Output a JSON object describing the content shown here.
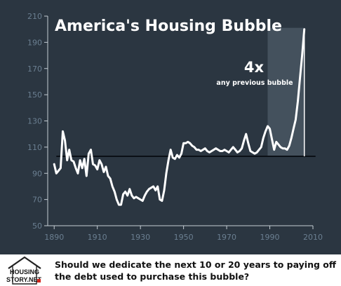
{
  "chart_data": {
    "type": "line",
    "title": "America's Housing Bubble",
    "xlabel": "",
    "ylabel": "",
    "xlim": [
      1887,
      2010
    ],
    "ylim": [
      50,
      210
    ],
    "x_ticks": [
      1890,
      1910,
      1930,
      1950,
      1970,
      1990,
      2010
    ],
    "y_ticks": [
      50,
      70,
      90,
      110,
      130,
      150,
      170,
      190,
      210
    ],
    "grid": false,
    "legend": "none",
    "colors": {
      "background": "#2b3641",
      "line": "#ffffff",
      "tick_label": "#6b7f91",
      "axis": "#c5cdd4",
      "baseline": "#0b1016",
      "highlight": "#5a6874"
    },
    "baseline_value": 103,
    "baseline_x_range": [
      1891,
      2006
    ],
    "highlight_range": [
      1989,
      2006
    ],
    "annotation": {
      "big": "4x",
      "small": "any previous bubble",
      "x": 2006,
      "y": 200
    },
    "series": [
      {
        "x": [
          1890,
          1891,
          1892,
          1893,
          1894,
          1895,
          1896,
          1897,
          1898,
          1899,
          1900,
          1901,
          1902,
          1903,
          1904,
          1905,
          1906,
          1907,
          1908,
          1909,
          1910,
          1911,
          1912,
          1913,
          1914,
          1915,
          1916,
          1917,
          1918,
          1919,
          1920,
          1921,
          1922,
          1923,
          1924,
          1925,
          1926,
          1927,
          1928,
          1929,
          1930,
          1931,
          1932,
          1933,
          1934,
          1935,
          1936,
          1937,
          1938,
          1939,
          1940,
          1941,
          1942,
          1943,
          1944,
          1945,
          1946,
          1947,
          1948,
          1949,
          1950,
          1951,
          1952,
          1953,
          1954,
          1955,
          1956,
          1957,
          1958,
          1959,
          1960,
          1961,
          1962,
          1963,
          1964,
          1965,
          1966,
          1967,
          1968,
          1969,
          1970,
          1971,
          1972,
          1973,
          1974,
          1975,
          1976,
          1977,
          1978,
          1979,
          1980,
          1981,
          1982,
          1983,
          1984,
          1985,
          1986,
          1987,
          1988,
          1989,
          1990,
          1991,
          1992,
          1993,
          1994,
          1995,
          1996,
          1997,
          1998,
          1999,
          2000,
          2001,
          2002,
          2003,
          2004,
          2005,
          2006
        ],
        "values": [
          97,
          90,
          92,
          94,
          122,
          115,
          100,
          108,
          100,
          99,
          94,
          90,
          100,
          94,
          101,
          88,
          105,
          108,
          97,
          96,
          93,
          100,
          97,
          91,
          95,
          88,
          86,
          80,
          76,
          70,
          66,
          66,
          74,
          76,
          73,
          78,
          73,
          71,
          72,
          71,
          70,
          69,
          73,
          76,
          78,
          79,
          80,
          77,
          80,
          70,
          69,
          77,
          90,
          100,
          108,
          102,
          101,
          104,
          102,
          105,
          113,
          113,
          114,
          113,
          111,
          110,
          108,
          108,
          107,
          108,
          109,
          107,
          106,
          107,
          108,
          109,
          108,
          107,
          107,
          108,
          107,
          106,
          108,
          110,
          108,
          106,
          107,
          109,
          115,
          120,
          113,
          107,
          106,
          105,
          106,
          108,
          110,
          117,
          122,
          126,
          124,
          116,
          108,
          114,
          112,
          110,
          109,
          109,
          108,
          111,
          117,
          124,
          131,
          145,
          163,
          180,
          200
        ]
      }
    ]
  },
  "footer": {
    "logo_line1": "HOUSING",
    "logo_line2": "STORY.NET",
    "line1": "Should we dedicate the next 10 or 20 years to paying off",
    "line2": "the debt used to purchase this bubble?"
  }
}
